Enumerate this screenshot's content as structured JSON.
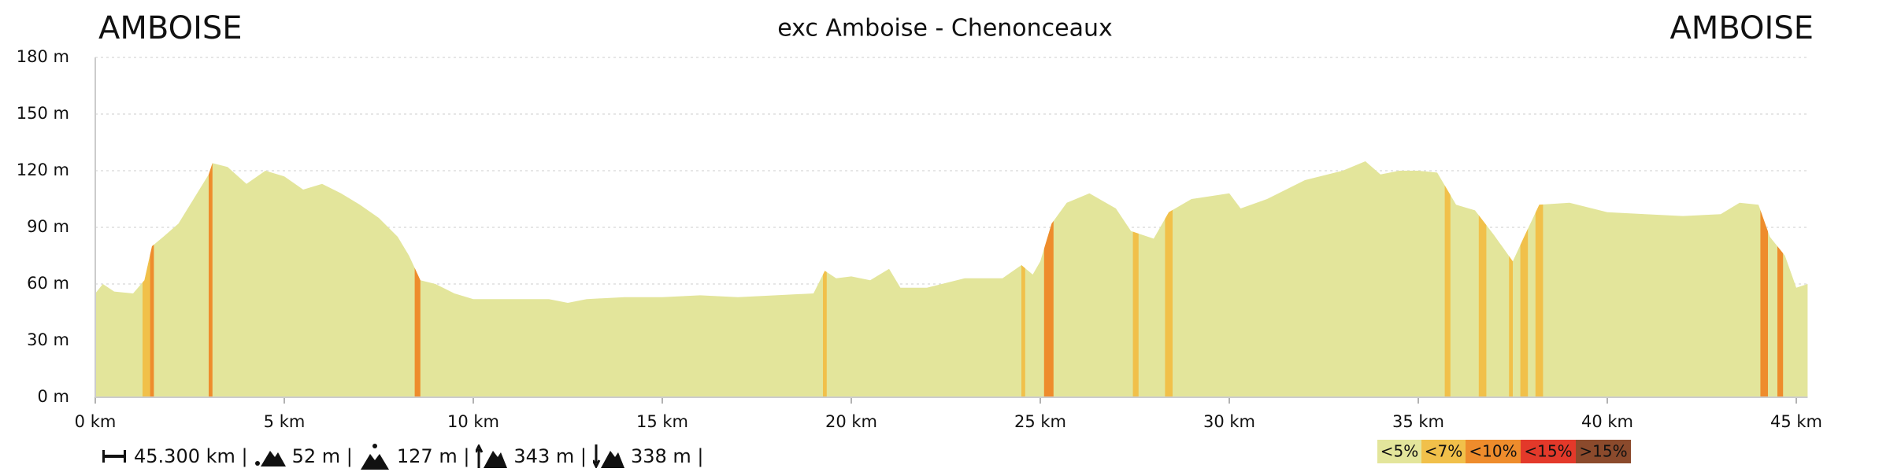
{
  "chart_data": {
    "type": "area",
    "title": "exc Amboise - Chenonceaux",
    "start_label": "AMBOISE",
    "end_label": "AMBOISE",
    "color": "#e3e59b",
    "x": [
      0,
      0.2,
      0.5,
      1.0,
      1.3,
      1.5,
      1.8,
      2.2,
      2.6,
      3.0,
      3.1,
      3.5,
      4.0,
      4.5,
      5.0,
      5.5,
      6.0,
      6.5,
      7.0,
      7.5,
      8.0,
      8.3,
      8.6,
      9.0,
      9.5,
      10,
      11,
      12,
      12.5,
      13,
      14,
      15,
      16,
      17,
      18,
      19,
      19.3,
      19.6,
      20,
      20.5,
      21,
      21.3,
      22,
      23,
      24,
      24.5,
      24.8,
      25.0,
      25.3,
      25.7,
      26.3,
      27.0,
      27.4,
      28.0,
      28.4,
      29.0,
      30.0,
      30.3,
      31,
      32,
      33,
      33.6,
      34,
      34.5,
      35,
      35.5,
      36,
      36.5,
      37,
      37.5,
      37.8,
      38.2,
      39,
      40,
      41,
      42,
      43,
      43.5,
      44.0,
      44.3,
      44.7,
      45.0,
      45.3
    ],
    "y": [
      55,
      60,
      56,
      55,
      62,
      80,
      85,
      92,
      105,
      118,
      124,
      122,
      113,
      120,
      117,
      110,
      113,
      108,
      102,
      95,
      85,
      75,
      62,
      60,
      55,
      52,
      52,
      52,
      50,
      52,
      53,
      53,
      54,
      53,
      54,
      55,
      67,
      63,
      64,
      62,
      68,
      58,
      58,
      63,
      63,
      70,
      65,
      72,
      92,
      103,
      108,
      100,
      88,
      84,
      98,
      105,
      108,
      100,
      105,
      115,
      120,
      125,
      118,
      120,
      120,
      119,
      102,
      99,
      86,
      72,
      85,
      102,
      103,
      98,
      97,
      96,
      97,
      103,
      102,
      85,
      75,
      58,
      60
    ],
    "slope_segments": [
      {
        "x": [
          1.25,
          1.45
        ],
        "class": 1
      },
      {
        "x": [
          1.45,
          1.55
        ],
        "class": 2
      },
      {
        "x": [
          3.0,
          3.1
        ],
        "class": 2
      },
      {
        "x": [
          8.45,
          8.6
        ],
        "class": 2
      },
      {
        "x": [
          19.25,
          19.35
        ],
        "class": 1
      },
      {
        "x": [
          24.5,
          24.6
        ],
        "class": 1
      },
      {
        "x": [
          25.1,
          25.35
        ],
        "class": 2
      },
      {
        "x": [
          27.45,
          27.6
        ],
        "class": 1
      },
      {
        "x": [
          28.3,
          28.5
        ],
        "class": 1
      },
      {
        "x": [
          35.7,
          35.85
        ],
        "class": 1
      },
      {
        "x": [
          36.6,
          36.8
        ],
        "class": 1
      },
      {
        "x": [
          37.4,
          37.5
        ],
        "class": 1
      },
      {
        "x": [
          37.7,
          37.9
        ],
        "class": 1
      },
      {
        "x": [
          38.1,
          38.3
        ],
        "class": 1
      },
      {
        "x": [
          44.05,
          44.25
        ],
        "class": 2
      },
      {
        "x": [
          44.5,
          44.65
        ],
        "class": 2
      }
    ],
    "slope_legend": [
      {
        "label": "<5%",
        "color": "#e3e59b"
      },
      {
        "label": "<7%",
        "color": "#f1c04a"
      },
      {
        "label": "<10%",
        "color": "#ee8c2c"
      },
      {
        "label": "<15%",
        "color": "#e3392a"
      },
      {
        "label": ">15%",
        "color": "#8b4a2c"
      }
    ],
    "xlim": [
      0,
      45.3
    ],
    "ylim": [
      0,
      180
    ],
    "xticks": [
      {
        "value": 0,
        "label": "0 km"
      },
      {
        "value": 5,
        "label": "5 km"
      },
      {
        "value": 10,
        "label": "10 km"
      },
      {
        "value": 15,
        "label": "15 km"
      },
      {
        "value": 20,
        "label": "20 km"
      },
      {
        "value": 25,
        "label": "25 km"
      },
      {
        "value": 30,
        "label": "30 km"
      },
      {
        "value": 35,
        "label": "35 km"
      },
      {
        "value": 40,
        "label": "40 km"
      },
      {
        "value": 45,
        "label": "45 km"
      }
    ],
    "yticks": [
      {
        "value": 0,
        "label": "0 m"
      },
      {
        "value": 30,
        "label": "30 m"
      },
      {
        "value": 60,
        "label": "60 m"
      },
      {
        "value": 90,
        "label": "90 m"
      },
      {
        "value": 120,
        "label": "120 m"
      },
      {
        "value": 150,
        "label": "150 m"
      },
      {
        "value": 180,
        "label": "180 m"
      }
    ],
    "grid": true,
    "stats": {
      "distance": "45.300 km |",
      "min_altitude": "52 m |",
      "max_altitude": "127 m |",
      "ascent": "343 m |",
      "descent": "338 m |"
    }
  }
}
